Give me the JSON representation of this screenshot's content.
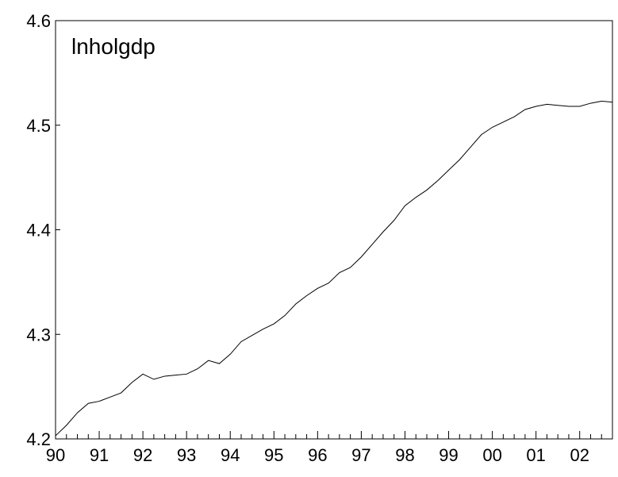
{
  "chart_data": {
    "type": "line",
    "title": "lnholgdp",
    "categories": [
      "90",
      null,
      null,
      null,
      "91",
      null,
      null,
      null,
      "92",
      null,
      null,
      null,
      "93",
      null,
      null,
      null,
      "94",
      null,
      null,
      null,
      "95",
      null,
      null,
      null,
      "96",
      null,
      null,
      null,
      "97",
      null,
      null,
      null,
      "98",
      null,
      null,
      null,
      "99",
      null,
      null,
      null,
      "00",
      null,
      null,
      null,
      "01",
      null,
      null,
      null,
      "02",
      null,
      null,
      null
    ],
    "series": [
      {
        "name": "lnholgdp",
        "color": "#000000",
        "values": [
          4.203,
          4.213,
          4.225,
          4.234,
          4.236,
          4.24,
          4.244,
          4.254,
          4.262,
          4.257,
          4.26,
          4.261,
          4.262,
          4.267,
          4.275,
          4.272,
          4.281,
          4.293,
          4.299,
          4.305,
          4.31,
          4.318,
          4.329,
          4.337,
          4.344,
          4.349,
          4.359,
          4.364,
          4.374,
          4.386,
          4.398,
          4.409,
          4.423,
          4.431,
          4.438,
          4.447,
          4.457,
          4.467,
          4.479,
          4.491,
          4.498,
          4.503,
          4.508,
          4.515,
          4.518,
          4.52,
          4.519,
          4.518,
          4.518,
          4.521,
          4.523,
          4.522
        ]
      }
    ],
    "ylim": [
      4.2,
      4.6
    ],
    "yticks": [
      4.2,
      4.3,
      4.4,
      4.5,
      4.6
    ]
  }
}
